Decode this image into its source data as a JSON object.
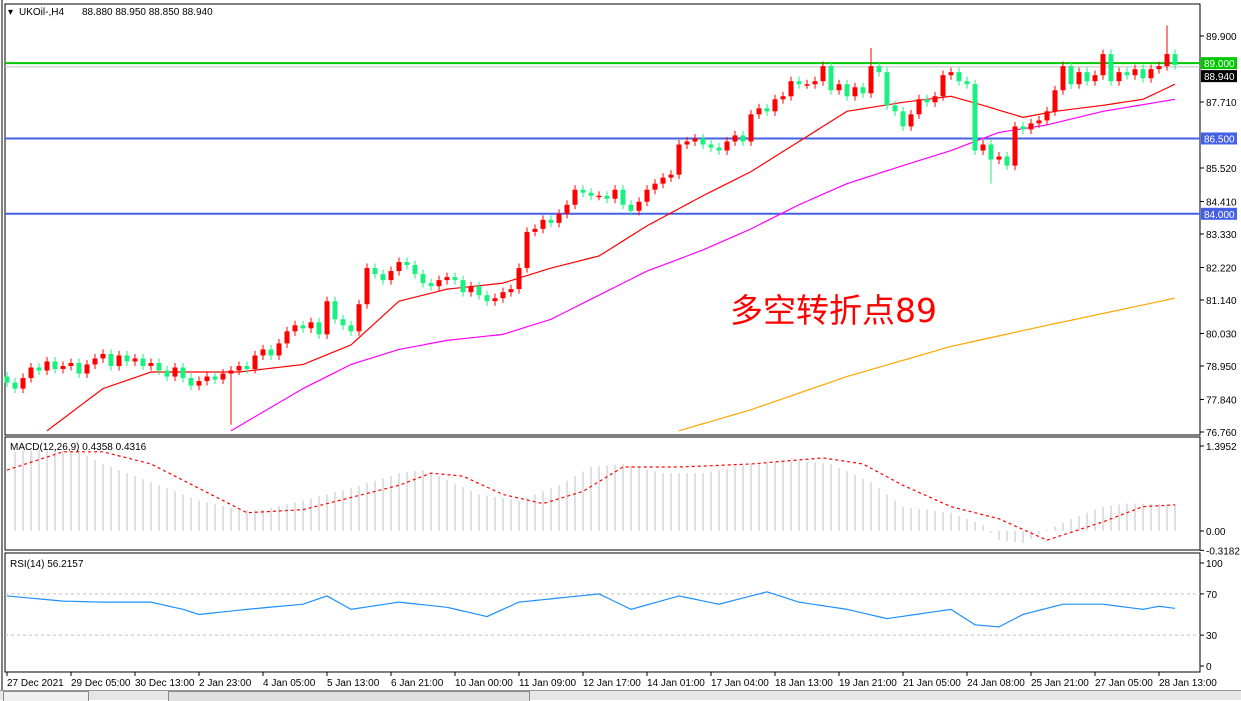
{
  "header": {
    "symbol": "UKOil-,H4",
    "ohlc": "88.880 88.950 88.850 88.940",
    "menu_icon": "triangle-down-icon"
  },
  "annotation": {
    "text": "多空转折点89",
    "color": "#ff0000"
  },
  "colors": {
    "bull": "#ff0000",
    "bear": "#19f07f",
    "ma_fast": "#ff0000",
    "ma_mid": "#ff00ff",
    "ma_slow": "#ffa500",
    "level_green": "#00c800",
    "level_blue": "#4560e6",
    "macd_hist": "#c0c0c0",
    "macd_signal": "#ff0000",
    "rsi": "#1e90ff"
  },
  "chart_data": [
    {
      "type": "candlestick",
      "title": "UKOil-,H4",
      "ylim": [
        76.76,
        89.9
      ],
      "y_ticks": [
        "89.900",
        "87.710",
        "85.520",
        "84.410",
        "83.330",
        "82.220",
        "81.140",
        "80.030",
        "78.950",
        "77.840",
        "76.760"
      ],
      "x_ticks": [
        "27 Dec 2021",
        "29 Dec 05:00",
        "30 Dec 13:00",
        "2 Jan 23:00",
        "4 Jan 05:00",
        "5 Jan 13:00",
        "6 Jan 21:00",
        "10 Jan 00:00",
        "11 Jan 09:00",
        "12 Jan 17:00",
        "14 Jan 01:00",
        "17 Jan 04:00",
        "18 Jan 13:00",
        "19 Jan 21:00",
        "21 Jan 05:00",
        "24 Jan 08:00",
        "25 Jan 21:00",
        "27 Jan 05:00",
        "28 Jan 13:00"
      ],
      "first_open": 78.6,
      "closes": [
        78.4,
        78.2,
        78.55,
        78.9,
        78.8,
        79.1,
        78.85,
        78.95,
        79.05,
        78.7,
        79.0,
        79.2,
        79.35,
        78.95,
        79.3,
        79.1,
        79.2,
        78.95,
        79.05,
        78.8,
        78.6,
        78.9,
        78.55,
        78.3,
        78.45,
        78.6,
        78.5,
        78.7,
        78.8,
        78.95,
        78.85,
        79.3,
        79.5,
        79.3,
        79.7,
        80.1,
        80.3,
        80.2,
        80.4,
        80.0,
        81.1,
        80.5,
        80.3,
        80.1,
        81.0,
        82.2,
        82.0,
        81.8,
        82.1,
        82.4,
        82.3,
        82.0,
        81.7,
        81.6,
        81.8,
        81.9,
        81.8,
        81.4,
        81.6,
        81.3,
        81.1,
        81.2,
        81.4,
        81.5,
        82.2,
        83.4,
        83.5,
        83.8,
        83.7,
        84.0,
        84.3,
        84.8,
        84.7,
        84.6,
        84.6,
        84.5,
        84.8,
        84.3,
        84.1,
        84.4,
        84.8,
        85.0,
        85.2,
        85.3,
        86.3,
        86.4,
        86.5,
        86.3,
        86.2,
        86.1,
        86.4,
        86.6,
        86.4,
        87.3,
        87.5,
        87.4,
        87.8,
        87.9,
        88.4,
        88.3,
        88.3,
        88.4,
        88.9,
        88.1,
        88.3,
        87.9,
        88.2,
        88.0,
        88.9,
        88.7,
        87.6,
        87.4,
        86.9,
        87.3,
        87.8,
        87.7,
        87.9,
        88.6,
        88.7,
        88.4,
        88.3,
        86.1,
        86.3,
        85.8,
        85.9,
        85.6,
        86.9,
        86.8,
        87.0,
        87.1,
        87.4,
        88.1,
        88.9,
        88.3,
        88.7,
        88.4,
        88.6,
        89.3,
        88.4,
        88.7,
        88.6,
        88.8,
        88.5,
        88.8,
        88.9,
        89.3,
        88.94
      ],
      "wick_extremes": {
        "28": {
          "low": 77.0
        },
        "108": {
          "high": 89.5
        },
        "123": {
          "low": 85.0
        },
        "145": {
          "high": 90.25
        }
      },
      "levels": [
        {
          "price": 89.0,
          "label": "89.000",
          "color": "level_green"
        },
        {
          "price": 86.5,
          "label": "86.500",
          "color": "level_blue"
        },
        {
          "price": 84.0,
          "label": "84.000",
          "color": "level_blue"
        }
      ],
      "bid_line": {
        "price": 88.94,
        "label": "88.940"
      },
      "moving_averages": [
        {
          "color": "ma_fast",
          "points": [
            [
              5,
              76.8
            ],
            [
              12,
              78.2
            ],
            [
              18,
              78.75
            ],
            [
              24,
              78.75
            ],
            [
              29,
              78.75
            ],
            [
              37,
              79.0
            ],
            [
              43,
              79.65
            ],
            [
              49,
              81.1
            ],
            [
              55,
              81.5
            ],
            [
              62,
              81.7
            ],
            [
              68,
              82.2
            ],
            [
              74,
              82.6
            ],
            [
              80,
              83.6
            ],
            [
              87,
              84.6
            ],
            [
              93,
              85.4
            ],
            [
              99,
              86.4
            ],
            [
              105,
              87.4
            ],
            [
              112,
              87.7
            ],
            [
              118,
              87.9
            ],
            [
              122,
              87.6
            ],
            [
              127,
              87.2
            ],
            [
              131,
              87.4
            ],
            [
              137,
              87.6
            ],
            [
              142,
              87.8
            ],
            [
              146,
              88.3
            ]
          ]
        },
        {
          "color": "ma_mid",
          "points": [
            [
              28,
              76.8
            ],
            [
              37,
              78.2
            ],
            [
              43,
              79.0
            ],
            [
              49,
              79.5
            ],
            [
              55,
              79.8
            ],
            [
              62,
              80.0
            ],
            [
              68,
              80.5
            ],
            [
              74,
              81.3
            ],
            [
              80,
              82.1
            ],
            [
              87,
              82.8
            ],
            [
              93,
              83.5
            ],
            [
              99,
              84.3
            ],
            [
              105,
              85.0
            ],
            [
              112,
              85.6
            ],
            [
              118,
              86.1
            ],
            [
              124,
              86.7
            ],
            [
              130,
              86.95
            ],
            [
              137,
              87.4
            ],
            [
              146,
              87.8
            ]
          ]
        },
        {
          "color": "ma_slow",
          "points": [
            [
              84,
              76.8
            ],
            [
              93,
              77.5
            ],
            [
              105,
              78.6
            ],
            [
              118,
              79.6
            ],
            [
              130,
              80.3
            ],
            [
              146,
              81.2
            ]
          ]
        }
      ]
    },
    {
      "type": "macd",
      "label": "MACD(12,26,9) 0.4358 0.4316",
      "ylim": [
        -0.3182,
        1.3952
      ],
      "y_ticks": [
        "1.3952",
        "0.00",
        "-0.3182"
      ],
      "histogram_points": [
        [
          1,
          1.3
        ],
        [
          5,
          1.35
        ],
        [
          9,
          1.3
        ],
        [
          12,
          1.1
        ],
        [
          18,
          0.8
        ],
        [
          24,
          0.5
        ],
        [
          29,
          0.35
        ],
        [
          32,
          0.35
        ],
        [
          37,
          0.5
        ],
        [
          43,
          0.7
        ],
        [
          49,
          0.95
        ],
        [
          52,
          1.0
        ],
        [
          54,
          0.9
        ],
        [
          59,
          0.6
        ],
        [
          64,
          0.5
        ],
        [
          69,
          0.75
        ],
        [
          73,
          1.05
        ],
        [
          77,
          1.1
        ],
        [
          82,
          0.95
        ],
        [
          87,
          0.95
        ],
        [
          93,
          1.1
        ],
        [
          99,
          1.15
        ],
        [
          103,
          1.1
        ],
        [
          108,
          0.8
        ],
        [
          112,
          0.4
        ],
        [
          118,
          0.3
        ],
        [
          122,
          0.1
        ],
        [
          124,
          -0.15
        ],
        [
          127,
          -0.2
        ],
        [
          129,
          -0.05
        ],
        [
          133,
          0.2
        ],
        [
          137,
          0.4
        ],
        [
          140,
          0.45
        ],
        [
          146,
          0.44
        ]
      ],
      "signal_points": [
        [
          0,
          1.0
        ],
        [
          7,
          1.3
        ],
        [
          12,
          1.3
        ],
        [
          18,
          1.1
        ],
        [
          24,
          0.7
        ],
        [
          30,
          0.3
        ],
        [
          37,
          0.35
        ],
        [
          43,
          0.55
        ],
        [
          49,
          0.75
        ],
        [
          53,
          0.95
        ],
        [
          57,
          0.9
        ],
        [
          62,
          0.6
        ],
        [
          67,
          0.45
        ],
        [
          72,
          0.65
        ],
        [
          77,
          1.05
        ],
        [
          84,
          1.05
        ],
        [
          93,
          1.1
        ],
        [
          102,
          1.2
        ],
        [
          107,
          1.1
        ],
        [
          112,
          0.75
        ],
        [
          118,
          0.4
        ],
        [
          124,
          0.2
        ],
        [
          130,
          -0.15
        ],
        [
          137,
          0.15
        ],
        [
          142,
          0.4
        ],
        [
          146,
          0.43
        ]
      ]
    },
    {
      "type": "line",
      "label": "RSI(14) 56.2157",
      "ylim": [
        0,
        100
      ],
      "y_ticks": [
        "100",
        "70",
        "30",
        "0"
      ],
      "levels": [
        70,
        30
      ],
      "points": [
        [
          0,
          68
        ],
        [
          7,
          63
        ],
        [
          12,
          62
        ],
        [
          18,
          62
        ],
        [
          22,
          55
        ],
        [
          24,
          50
        ],
        [
          30,
          55
        ],
        [
          37,
          60
        ],
        [
          40,
          68
        ],
        [
          43,
          55
        ],
        [
          49,
          62
        ],
        [
          55,
          57
        ],
        [
          60,
          48
        ],
        [
          64,
          62
        ],
        [
          69,
          66
        ],
        [
          74,
          70
        ],
        [
          78,
          55
        ],
        [
          84,
          68
        ],
        [
          89,
          60
        ],
        [
          95,
          72
        ],
        [
          99,
          62
        ],
        [
          105,
          55
        ],
        [
          110,
          46
        ],
        [
          118,
          55
        ],
        [
          121,
          40
        ],
        [
          124,
          38
        ],
        [
          127,
          50
        ],
        [
          132,
          60
        ],
        [
          137,
          60
        ],
        [
          142,
          55
        ],
        [
          144,
          58
        ],
        [
          146,
          56
        ]
      ]
    }
  ]
}
